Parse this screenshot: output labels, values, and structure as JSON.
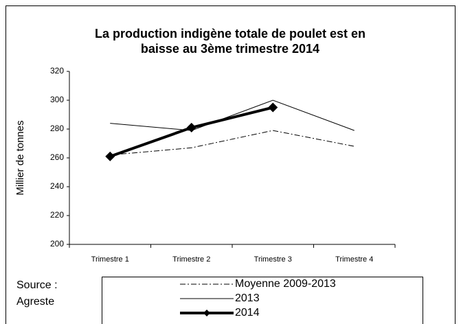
{
  "chart_data": {
    "type": "line",
    "title": "La production indigène totale de poulet est en baisse au 3ème trimestre 2014",
    "ylabel": "Millier de tonnes",
    "source": "Source : Agreste",
    "categories": [
      "Trimestre 1",
      "Trimestre 2",
      "Trimestre 3",
      "Trimestre 4"
    ],
    "series": [
      {
        "name": "Moyenne 2009-2013",
        "color": "#000000",
        "dash": "dashdot",
        "line_width": 1,
        "values": [
          262,
          267,
          279,
          268
        ]
      },
      {
        "name": "2013",
        "color": "#000000",
        "dash": "solid",
        "line_width": 1,
        "values": [
          284,
          279,
          300,
          279
        ]
      },
      {
        "name": "2014",
        "color": "#000000",
        "dash": "solid",
        "line_width": 4,
        "marker": "diamond",
        "values": [
          261,
          281,
          295,
          null
        ]
      }
    ],
    "ylim": [
      200,
      320
    ],
    "yticks": [
      200,
      220,
      240,
      260,
      280,
      300,
      320
    ],
    "grid": false
  }
}
